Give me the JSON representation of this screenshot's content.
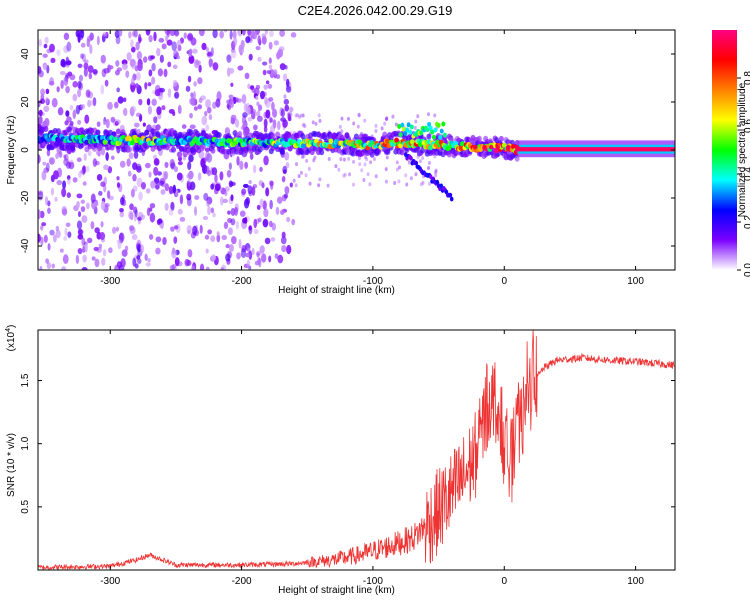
{
  "title": "C2E4.2026.042.00.29.G19",
  "chart_data": [
    {
      "type": "heatmap",
      "title": "C2E4.2026.042.00.29.G19",
      "xlabel": "Height of straight line (km)",
      "ylabel": "Frequency (Hz)",
      "xlim": [
        -355,
        130
      ],
      "ylim": [
        -50,
        50
      ],
      "xticks": [
        -300,
        -200,
        -100,
        0,
        100
      ],
      "yticks": [
        -40,
        -20,
        0,
        20,
        40
      ],
      "colorbar": {
        "label": "Normalized spectral amplitude",
        "range": [
          0,
          1
        ],
        "ticks": [
          "0.0",
          "0.2",
          "0.4",
          "0.6",
          "0.8"
        ],
        "tick_values": [
          0.0,
          0.2,
          0.4,
          0.6,
          0.8
        ],
        "colormap": [
          "#ffffff",
          "#7b00ff",
          "#0000ff",
          "#00ffff",
          "#00ff00",
          "#ffff00",
          "#ff8000",
          "#ff0000",
          "#ff0080"
        ]
      },
      "ridge": [
        {
          "x": -355,
          "f": 5,
          "amp": 0.3
        },
        {
          "x": -300,
          "f": 4,
          "amp": 0.4
        },
        {
          "x": -280,
          "f": 4,
          "amp": 0.55
        },
        {
          "x": -250,
          "f": 4,
          "amp": 0.35
        },
        {
          "x": -200,
          "f": 3,
          "amp": 0.45
        },
        {
          "x": -150,
          "f": 3,
          "amp": 0.55
        },
        {
          "x": -100,
          "f": 2,
          "amp": 0.6
        },
        {
          "x": -80,
          "f": 3,
          "amp": 0.65
        },
        {
          "x": -50,
          "f": 2,
          "amp": 0.6
        },
        {
          "x": -20,
          "f": 1,
          "amp": 0.7
        },
        {
          "x": 0,
          "f": 1,
          "amp": 0.85
        },
        {
          "x": 10,
          "f": 0,
          "amp": 0.95
        },
        {
          "x": 130,
          "f": 0,
          "amp": 0.95
        }
      ],
      "noise_region": {
        "x_from": -355,
        "x_to": -160,
        "f_from": -50,
        "f_to": 50
      }
    },
    {
      "type": "line",
      "xlabel": "Height of straight line (km)",
      "ylabel": "SNR (10 * v/v)",
      "multiplier_label": "(x10",
      "multiplier_exp": "4",
      "multiplier_close": ")",
      "xlim": [
        -355,
        130
      ],
      "ylim": [
        0,
        1.9
      ],
      "xticks": [
        -300,
        -200,
        -100,
        0,
        100
      ],
      "yticks": [
        0.5,
        1.0,
        1.5
      ],
      "ytick_labels": [
        "0.5",
        "1.0",
        "1.5"
      ],
      "color": "#ee3333",
      "series": [
        {
          "name": "SNR",
          "x": [
            -355,
            -300,
            -280,
            -270,
            -250,
            -200,
            -160,
            -130,
            -110,
            -90,
            -70,
            -55,
            -40,
            -30,
            -20,
            -15,
            -10,
            -5,
            0,
            5,
            10,
            15,
            20,
            30,
            40,
            60,
            80,
            100,
            120,
            130
          ],
          "values": [
            0.02,
            0.03,
            0.08,
            0.12,
            0.04,
            0.04,
            0.05,
            0.08,
            0.12,
            0.18,
            0.25,
            0.4,
            0.6,
            0.75,
            0.95,
            1.2,
            1.4,
            1.3,
            1.0,
            0.85,
            1.05,
            1.25,
            1.45,
            1.6,
            1.66,
            1.68,
            1.66,
            1.65,
            1.63,
            1.62
          ]
        }
      ]
    }
  ]
}
